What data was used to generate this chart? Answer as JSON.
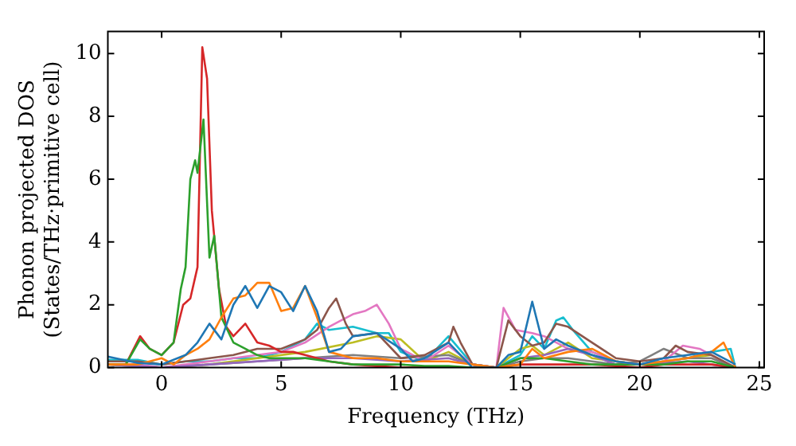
{
  "chart_data": {
    "type": "line",
    "xlabel": "Frequency (THz)",
    "ylabel": "Phonon projected DOS\n(States/THz·primitive cell)",
    "xlim": [
      -2.25,
      25.2
    ],
    "ylim": [
      0,
      10.7
    ],
    "xticks": [
      0,
      5,
      10,
      15,
      20,
      25
    ],
    "yticks": [
      0,
      2,
      4,
      6,
      8,
      10
    ],
    "grid": false,
    "legend": false,
    "marker": "none",
    "line_style": "solid",
    "series": [
      {
        "color": "#1f77b4",
        "x": [
          -2.25,
          -1,
          0,
          1,
          1.5,
          2,
          2.5,
          3,
          3.5,
          4,
          4.5,
          5,
          5.5,
          6,
          6.5,
          7,
          7.5,
          8,
          9,
          10,
          10.5,
          11,
          12,
          12.5,
          13,
          14,
          14.5,
          15,
          15.5,
          16,
          16.5,
          17,
          18,
          19,
          20,
          21,
          22,
          23,
          24
        ],
        "values": [
          0.35,
          0.15,
          0.1,
          0.4,
          0.8,
          1.4,
          0.9,
          2.0,
          2.6,
          1.9,
          2.6,
          2.4,
          1.8,
          2.6,
          1.8,
          0.5,
          0.6,
          1.0,
          1.1,
          0.6,
          0.2,
          0.3,
          0.8,
          0.4,
          0,
          0,
          0.4,
          0.5,
          2.1,
          0.6,
          0.9,
          0.7,
          0.4,
          0.2,
          0.1,
          0.3,
          0.4,
          0.5,
          0.1
        ]
      },
      {
        "color": "#ff7f0e",
        "x": [
          -2.25,
          -1,
          0,
          0.5,
          1,
          1.5,
          2,
          2.5,
          3,
          3.5,
          4,
          4.5,
          5,
          5.5,
          6,
          6.5,
          7,
          8,
          9,
          10,
          11,
          12,
          13,
          14,
          15,
          15.5,
          16,
          17,
          18,
          19,
          20,
          21,
          22,
          23,
          23.5,
          24
        ],
        "values": [
          0.1,
          0.1,
          0.3,
          0.1,
          0.4,
          0.6,
          0.9,
          1.6,
          2.2,
          2.3,
          2.7,
          2.7,
          1.8,
          1.9,
          2.6,
          1.6,
          0.5,
          0.3,
          0.3,
          0.2,
          0.2,
          0.2,
          0.1,
          0,
          0.1,
          0.6,
          0.3,
          0.5,
          0.6,
          0.2,
          0.1,
          0.2,
          0.3,
          0.5,
          0.8,
          0
        ]
      },
      {
        "color": "#2ca02c",
        "x": [
          -2.25,
          -1.5,
          -0.9,
          -0.5,
          0,
          0.5,
          0.8,
          1.0,
          1.2,
          1.4,
          1.5,
          1.75,
          2.0,
          2.2,
          2.5,
          3,
          3.5,
          4,
          4.5,
          5,
          6,
          7,
          8,
          9,
          10,
          11,
          12,
          13,
          14,
          15,
          16,
          17,
          18,
          19,
          20,
          21,
          22,
          23,
          24
        ],
        "values": [
          0.1,
          0.1,
          0.9,
          0.6,
          0.4,
          0.8,
          2.5,
          3.2,
          6.0,
          6.6,
          6.2,
          7.9,
          3.5,
          4.2,
          1.6,
          0.8,
          0.6,
          0.4,
          0.3,
          0.3,
          0.3,
          0.2,
          0.1,
          0.1,
          0.1,
          0.05,
          0.05,
          0,
          0,
          0.3,
          0.3,
          0.2,
          0.1,
          0.1,
          0.1,
          0.1,
          0.2,
          0.2,
          0
        ]
      },
      {
        "color": "#d62728",
        "x": [
          -2.25,
          -1.5,
          -0.9,
          -0.5,
          0,
          0.5,
          0.9,
          1.2,
          1.5,
          1.7,
          1.9,
          2.1,
          2.4,
          2.7,
          3,
          3.5,
          4,
          4.5,
          5,
          5.5,
          6,
          6.5,
          7,
          8,
          9,
          10,
          11,
          12,
          13,
          14,
          15,
          16,
          17,
          18,
          19,
          20,
          21,
          22,
          23,
          24
        ],
        "values": [
          0.1,
          0.1,
          1.0,
          0.6,
          0.4,
          0.8,
          2.0,
          2.2,
          3.2,
          10.2,
          9.2,
          5.0,
          2.5,
          1.3,
          1.0,
          1.4,
          0.8,
          0.7,
          0.5,
          0.5,
          0.4,
          0.3,
          0.2,
          0.1,
          0.05,
          0,
          0,
          0,
          0,
          0,
          0.1,
          0.1,
          0.1,
          0.1,
          0.05,
          0,
          0.1,
          0.1,
          0.1,
          0
        ]
      },
      {
        "color": "#9467bd",
        "x": [
          -2.25,
          0,
          2,
          4,
          6,
          8,
          10,
          12,
          13,
          14,
          15,
          16,
          17,
          18,
          19,
          20,
          22,
          24
        ],
        "values": [
          0.1,
          0,
          0.1,
          0.2,
          0.3,
          0.3,
          0.2,
          0.3,
          0.1,
          0,
          0.3,
          0.4,
          0.6,
          0.4,
          0.1,
          0.1,
          0.2,
          0
        ]
      },
      {
        "color": "#8c564b",
        "x": [
          -2.25,
          -1,
          0,
          1,
          2,
          3,
          4,
          5,
          6,
          6.5,
          7,
          7.3,
          7.7,
          8,
          9,
          10,
          11,
          12,
          12.2,
          12.5,
          13,
          14,
          14.5,
          15,
          15.5,
          16,
          16.5,
          17,
          18,
          19,
          20,
          21,
          21.5,
          22,
          23,
          24
        ],
        "values": [
          0.2,
          0.2,
          0.1,
          0.2,
          0.3,
          0.4,
          0.6,
          0.6,
          0.9,
          1.2,
          1.9,
          2.2,
          1.4,
          1.0,
          1.1,
          0.3,
          0.4,
          0.8,
          1.3,
          0.8,
          0.1,
          0,
          1.5,
          1.0,
          0.7,
          0.8,
          1.4,
          1.3,
          0.8,
          0.3,
          0.2,
          0.3,
          0.7,
          0.5,
          0.4,
          0
        ]
      },
      {
        "color": "#e377c2",
        "x": [
          -2.25,
          -1,
          0,
          1,
          2,
          3,
          4,
          5,
          6,
          7,
          7.5,
          8,
          8.5,
          9,
          9.5,
          10,
          11,
          12,
          13,
          14,
          14.3,
          14.8,
          15.5,
          16,
          17,
          18,
          19,
          20,
          21,
          21.8,
          22.5,
          23,
          24
        ],
        "values": [
          0.1,
          0.1,
          0,
          0.1,
          0.2,
          0.3,
          0.4,
          0.5,
          0.8,
          1.3,
          1.5,
          1.7,
          1.8,
          2.0,
          1.4,
          0.6,
          0.2,
          0.7,
          0.1,
          0,
          1.9,
          1.2,
          1.1,
          1.0,
          0.6,
          0.5,
          0.2,
          0.1,
          0.2,
          0.7,
          0.6,
          0.4,
          0
        ]
      },
      {
        "color": "#7f7f7f",
        "x": [
          -2.25,
          0,
          2,
          4,
          6,
          8,
          10,
          12,
          13,
          14,
          15,
          16,
          17,
          18,
          19,
          20,
          20.5,
          21,
          22,
          23,
          24
        ],
        "values": [
          0.1,
          0,
          0.1,
          0.2,
          0.3,
          0.4,
          0.3,
          0.4,
          0.1,
          0,
          0.2,
          0.3,
          0.3,
          0.2,
          0.1,
          0.2,
          0.4,
          0.6,
          0.3,
          0.3,
          0
        ]
      },
      {
        "color": "#bcbd22",
        "x": [
          -2.25,
          0,
          2,
          4,
          6,
          8,
          9,
          10,
          11,
          12,
          13,
          14,
          15,
          15.5,
          16,
          17,
          18,
          19,
          20,
          21,
          22,
          23,
          24
        ],
        "values": [
          0.1,
          0,
          0.1,
          0.3,
          0.5,
          0.8,
          1.0,
          0.9,
          0.2,
          0.5,
          0.1,
          0,
          0.6,
          0.7,
          0.4,
          0.8,
          0.3,
          0.2,
          0.1,
          0.2,
          0.3,
          0.4,
          0
        ]
      },
      {
        "color": "#17becf",
        "x": [
          -2.25,
          -1,
          0,
          1,
          2,
          3,
          4,
          5,
          6,
          6.5,
          7,
          8,
          9,
          9.5,
          10,
          11,
          12,
          13,
          14,
          15,
          15.5,
          16,
          16.5,
          16.8,
          17.2,
          18,
          19,
          20,
          21,
          22,
          23,
          23.8,
          24
        ],
        "values": [
          0.25,
          0.25,
          0.1,
          0.2,
          0.2,
          0.3,
          0.3,
          0.5,
          0.9,
          1.4,
          1.2,
          1.3,
          1.1,
          1.1,
          0.5,
          0.2,
          1.0,
          0.1,
          0,
          0.4,
          1.0,
          0.6,
          1.5,
          1.6,
          1.2,
          0.5,
          0.2,
          0.1,
          0.2,
          0.3,
          0.5,
          0.6,
          0
        ]
      }
    ]
  }
}
